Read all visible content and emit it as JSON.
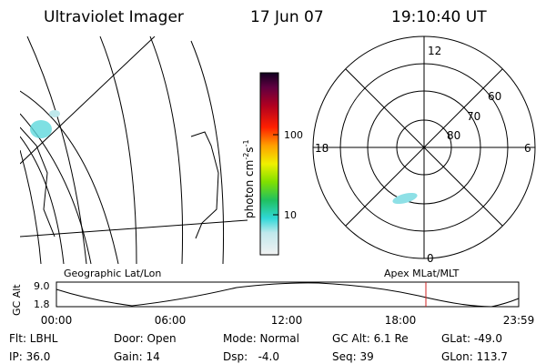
{
  "header": {
    "title": "Ultraviolet Imager",
    "date": "17 Jun 07",
    "time": "19:10:40 UT"
  },
  "colorbar": {
    "label": "photon cm",
    "exp1": "-2",
    "unit2": "s",
    "exp2": "-1",
    "ticks": [
      "100",
      "10"
    ]
  },
  "polar": {
    "labels": [
      "12",
      "18",
      "6",
      "0"
    ],
    "latitudes": [
      "60",
      "70",
      "80"
    ]
  },
  "panels": {
    "left_caption": "Geographic Lat/Lon",
    "right_caption": "Apex MLat/MLT"
  },
  "timeline": {
    "axis_label": "GC Alt",
    "ymax": "9.0",
    "ymin": "1.8",
    "times": [
      "00:00",
      "06:00",
      "12:00",
      "18:00",
      "23:59"
    ]
  },
  "footer": {
    "rows": [
      [
        "Flt: LBHL",
        "Door: Open",
        "Mode: Normal",
        "GC Alt: 6.1 Re",
        "GLat: -49.0"
      ],
      [
        "IP: 36.0",
        "Gain: 14",
        "Dsp:   -4.0",
        "Seq: 39",
        "GLon: 113.7"
      ]
    ]
  }
}
